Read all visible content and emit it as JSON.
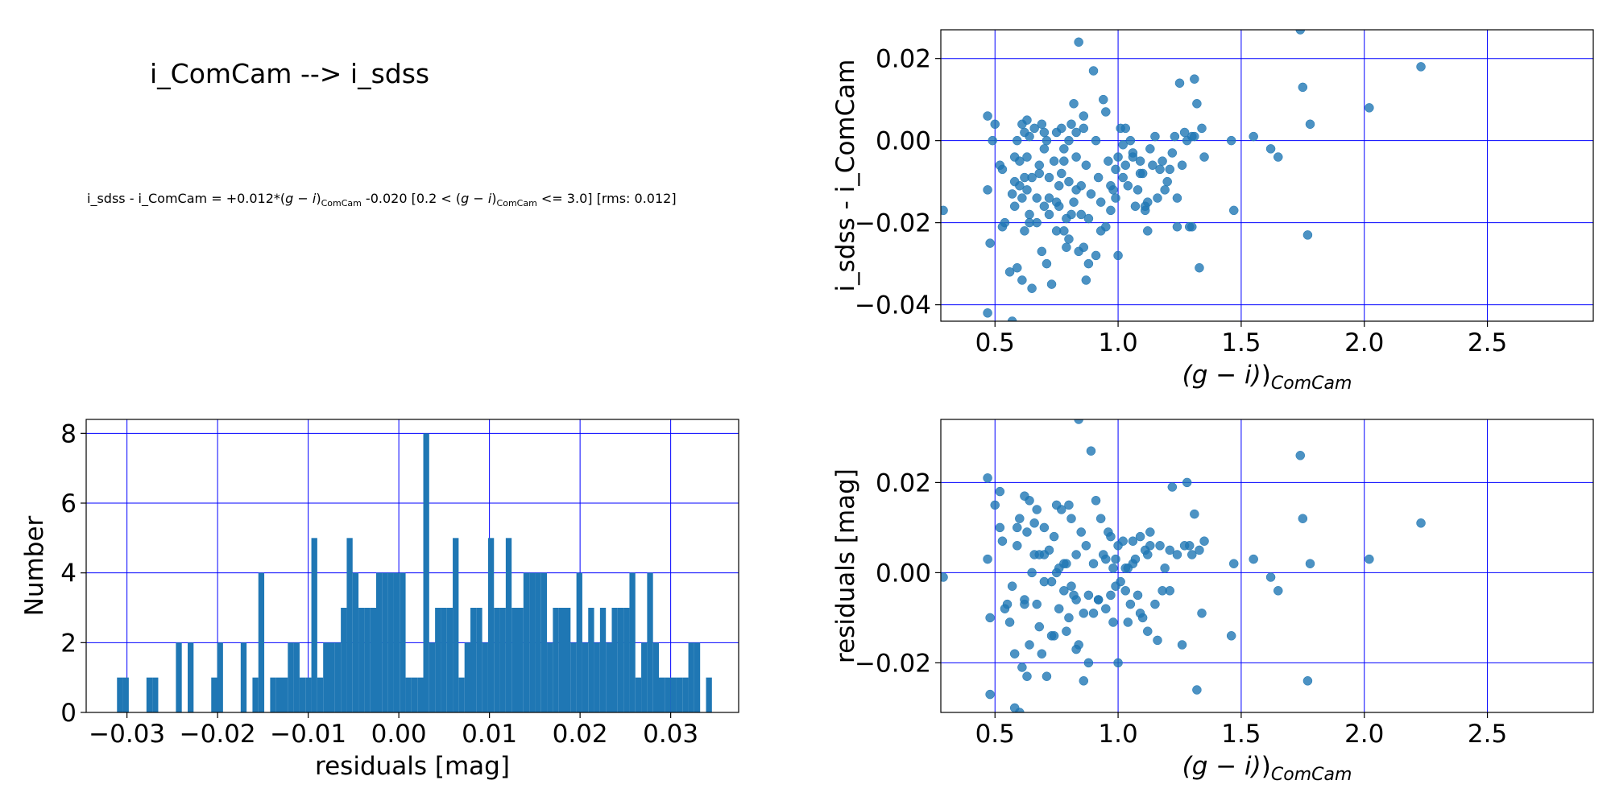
{
  "title": "i_ComCam --> i_sdss",
  "formula": {
    "lhs": "i_sdss - i_ComCam = +0.012*(",
    "var1_pre": "g",
    "var1_mid": " − ",
    "var1_post": "i",
    "var1_sub": "ComCam",
    "mid": " -0.020  [0.2 < (",
    "var2_sub": "ComCam",
    "tail": " <= 3.0]  [rms: 0.012]"
  },
  "chart_data": [
    {
      "type": "scatter",
      "panel": "top-right",
      "xlabel": "(g − i)",
      "xlabel_sub": "ComCam",
      "ylabel": "i_sdss - i_ComCam",
      "xlim": [
        0.28,
        2.93
      ],
      "ylim": [
        -0.044,
        0.027
      ],
      "xticks": [
        0.5,
        1.0,
        1.5,
        2.0,
        2.5
      ],
      "xtick_labels": [
        "0.5",
        "1.0",
        "1.5",
        "2.0",
        "2.5"
      ],
      "yticks": [
        -0.04,
        -0.02,
        0.0,
        0.02
      ],
      "ytick_labels": [
        "−0.04",
        "−0.02",
        "0.00",
        "0.02"
      ],
      "grid": true,
      "color": "#1f77b4",
      "grid_color": "#0000ff",
      "x": [
        0.29,
        0.47,
        0.47,
        0.48,
        0.47,
        0.49,
        0.5,
        0.53,
        0.53,
        0.54,
        0.57,
        0.57,
        0.58,
        0.58,
        0.59,
        0.59,
        0.6,
        0.6,
        0.61,
        0.61,
        0.61,
        0.62,
        0.62,
        0.63,
        0.63,
        0.63,
        0.64,
        0.64,
        0.65,
        0.65,
        0.66,
        0.67,
        0.67,
        0.68,
        0.69,
        0.69,
        0.7,
        0.7,
        0.71,
        0.71,
        0.72,
        0.72,
        0.73,
        0.74,
        0.75,
        0.75,
        0.76,
        0.76,
        0.77,
        0.77,
        0.78,
        0.78,
        0.79,
        0.8,
        0.8,
        0.8,
        0.81,
        0.81,
        0.82,
        0.82,
        0.83,
        0.83,
        0.84,
        0.84,
        0.85,
        0.85,
        0.86,
        0.86,
        0.87,
        0.87,
        0.88,
        0.89,
        0.9,
        0.91,
        0.92,
        0.93,
        0.93,
        0.94,
        0.95,
        0.96,
        0.97,
        0.98,
        0.99,
        1.0,
        1.0,
        1.01,
        1.02,
        1.03,
        1.04,
        1.05,
        1.06,
        1.07,
        1.08,
        1.09,
        1.1,
        1.11,
        1.12,
        1.13,
        1.14,
        1.15,
        1.17,
        1.19,
        1.2,
        1.22,
        1.23,
        1.24,
        1.25,
        1.26,
        1.28,
        1.29,
        1.3,
        1.31,
        1.32,
        1.33,
        1.34,
        1.35,
        1.46,
        1.47,
        1.55,
        1.62,
        1.65,
        1.74,
        1.75,
        1.77,
        1.78,
        2.02,
        2.23,
        0.56,
        0.58,
        0.64,
        0.72,
        0.79,
        0.86,
        0.91,
        0.99,
        1.06,
        1.11,
        1.18,
        1.27,
        1.31,
        0.68,
        0.75,
        0.83,
        0.95,
        1.02,
        1.09,
        1.16,
        1.24,
        0.52,
        0.62,
        0.7,
        0.78,
        0.88,
        0.97,
        1.03,
        1.12,
        1.21,
        1.3
      ],
      "y": [
        -0.017,
        0.006,
        -0.012,
        -0.025,
        -0.042,
        0.0,
        0.004,
        -0.007,
        -0.021,
        -0.02,
        -0.013,
        -0.044,
        -0.004,
        -0.016,
        0.0,
        -0.031,
        -0.011,
        -0.005,
        0.004,
        -0.034,
        -0.014,
        0.002,
        -0.022,
        0.005,
        -0.004,
        -0.012,
        -0.018,
        0.001,
        -0.036,
        -0.009,
        0.003,
        -0.014,
        -0.02,
        -0.006,
        0.004,
        -0.027,
        -0.002,
        -0.016,
        0.0,
        -0.03,
        -0.009,
        -0.018,
        -0.035,
        -0.005,
        0.002,
        -0.022,
        -0.011,
        -0.016,
        0.003,
        -0.008,
        -0.002,
        -0.022,
        -0.019,
        0.0,
        -0.01,
        -0.024,
        0.004,
        -0.018,
        0.009,
        -0.015,
        0.002,
        -0.004,
        -0.027,
        0.024,
        -0.011,
        -0.018,
        -0.026,
        0.003,
        -0.006,
        -0.034,
        -0.03,
        -0.013,
        0.017,
        0.0,
        -0.009,
        -0.015,
        -0.022,
        0.01,
        0.007,
        -0.005,
        -0.017,
        -0.012,
        -0.014,
        -0.004,
        -0.028,
        0.003,
        -0.009,
        -0.006,
        -0.011,
        0.0,
        -0.003,
        -0.016,
        -0.012,
        -0.005,
        -0.008,
        -0.017,
        -0.022,
        -0.002,
        -0.006,
        0.001,
        -0.007,
        -0.012,
        -0.01,
        -0.003,
        0.001,
        -0.014,
        0.014,
        -0.006,
        0.0,
        -0.021,
        0.001,
        0.015,
        0.009,
        -0.031,
        0.003,
        -0.004,
        0.0,
        -0.017,
        0.001,
        -0.002,
        -0.004,
        0.027,
        0.013,
        -0.023,
        0.004,
        0.008,
        0.018,
        -0.032,
        -0.01,
        -0.02,
        -0.014,
        -0.026,
        0.006,
        -0.028,
        -0.007,
        -0.004,
        -0.016,
        -0.005,
        0.002,
        0.001,
        -0.008,
        -0.015,
        -0.012,
        -0.021,
        -0.001,
        -0.008,
        -0.014,
        -0.021,
        -0.006,
        -0.009,
        0.002,
        -0.005,
        -0.019,
        -0.011,
        0.003,
        -0.015,
        -0.007,
        -0.021
      ]
    },
    {
      "type": "bar",
      "subtype": "histogram",
      "panel": "bottom-left",
      "xlabel": "residuals [mag]",
      "ylabel": "Number",
      "xlim": [
        -0.0345,
        0.0375
      ],
      "ylim": [
        0,
        8.4
      ],
      "xticks": [
        -0.03,
        -0.02,
        -0.01,
        0.0,
        0.01,
        0.02,
        0.03
      ],
      "xtick_labels": [
        "−0.03",
        "−0.02",
        "−0.01",
        "0.00",
        "0.01",
        "0.02",
        "0.03"
      ],
      "yticks": [
        0,
        2,
        4,
        6,
        8
      ],
      "ytick_labels": [
        "0",
        "2",
        "4",
        "6",
        "8"
      ],
      "grid": true,
      "color": "#1f77b4",
      "grid_color": "#0000ff",
      "bin_start": -0.0311,
      "bin_width": 0.00065,
      "values": [
        1,
        1,
        0,
        0,
        0,
        1,
        1,
        0,
        0,
        0,
        2,
        0,
        2,
        0,
        0,
        0,
        1,
        2,
        0,
        0,
        0,
        2,
        0,
        1,
        4,
        0,
        1,
        1,
        1,
        2,
        2,
        1,
        1,
        5,
        1,
        2,
        2,
        2,
        3,
        5,
        4,
        3,
        3,
        3,
        4,
        4,
        4,
        4,
        4,
        1,
        1,
        1,
        8,
        2,
        3,
        3,
        3,
        5,
        1,
        2,
        3,
        3,
        2,
        5,
        3,
        3,
        5,
        3,
        3,
        4,
        4,
        4,
        4,
        2,
        3,
        3,
        3,
        2,
        4,
        2,
        3,
        2,
        3,
        2,
        3,
        3,
        3,
        4,
        1,
        2,
        4,
        2,
        1,
        1,
        1,
        1,
        1,
        2,
        2,
        0,
        1,
        0,
        0,
        0,
        0,
        0,
        0,
        0,
        0,
        0,
        0,
        0,
        0,
        0,
        0,
        0,
        0,
        0,
        0,
        0
      ]
    },
    {
      "type": "scatter",
      "panel": "bottom-right",
      "xlabel": "(g − i)",
      "xlabel_sub": "ComCam",
      "ylabel": "residuals [mag]",
      "xlim": [
        0.28,
        2.93
      ],
      "ylim": [
        -0.031,
        0.034
      ],
      "xticks": [
        0.5,
        1.0,
        1.5,
        2.0,
        2.5
      ],
      "xtick_labels": [
        "0.5",
        "1.0",
        "1.5",
        "2.0",
        "2.5"
      ],
      "yticks": [
        -0.02,
        0.0,
        0.02
      ],
      "ytick_labels": [
        "−0.02",
        "0.00",
        "0.02"
      ],
      "grid": true,
      "color": "#1f77b4",
      "grid_color": "#0000ff",
      "x": [
        0.29,
        0.47,
        0.47,
        0.48,
        0.48,
        0.5,
        0.52,
        0.53,
        0.54,
        0.57,
        0.58,
        0.58,
        0.59,
        0.6,
        0.6,
        0.61,
        0.62,
        0.62,
        0.63,
        0.63,
        0.64,
        0.65,
        0.66,
        0.67,
        0.67,
        0.68,
        0.69,
        0.7,
        0.7,
        0.71,
        0.72,
        0.73,
        0.74,
        0.75,
        0.76,
        0.76,
        0.77,
        0.78,
        0.79,
        0.8,
        0.8,
        0.81,
        0.82,
        0.83,
        0.83,
        0.84,
        0.84,
        0.85,
        0.86,
        0.87,
        0.88,
        0.89,
        0.9,
        0.91,
        0.92,
        0.93,
        0.94,
        0.95,
        0.96,
        0.97,
        0.98,
        0.99,
        1.0,
        1.0,
        1.01,
        1.02,
        1.03,
        1.04,
        1.05,
        1.06,
        1.07,
        1.08,
        1.09,
        1.1,
        1.11,
        1.12,
        1.13,
        1.15,
        1.17,
        1.19,
        1.21,
        1.22,
        1.24,
        1.26,
        1.28,
        1.29,
        1.3,
        1.31,
        1.32,
        1.33,
        1.34,
        1.35,
        1.46,
        1.47,
        1.55,
        1.62,
        1.65,
        1.74,
        1.75,
        1.77,
        1.78,
        2.02,
        2.23,
        0.56,
        0.59,
        0.64,
        0.73,
        0.79,
        0.86,
        0.92,
        0.99,
        1.06,
        1.12,
        1.18,
        1.27,
        0.68,
        0.75,
        0.83,
        0.95,
        1.03,
        1.09,
        1.16,
        0.52,
        0.62,
        0.7,
        0.78,
        0.88,
        0.97,
        1.04,
        1.13,
        1.21,
        0.55,
        0.66,
        0.74,
        0.81,
        0.9,
        0.98
      ],
      "y": [
        -0.001,
        0.021,
        0.003,
        -0.01,
        -0.027,
        0.015,
        0.018,
        0.007,
        -0.008,
        -0.003,
        -0.018,
        -0.03,
        0.006,
        0.012,
        -0.031,
        -0.021,
        0.017,
        -0.006,
        0.009,
        -0.023,
        0.016,
        0.0,
        0.011,
        -0.007,
        0.014,
        0.004,
        -0.018,
        0.01,
        -0.002,
        -0.023,
        0.005,
        -0.014,
        0.008,
        0.015,
        0.001,
        -0.008,
        0.014,
        -0.004,
        0.002,
        0.015,
        -0.01,
        0.012,
        -0.005,
        -0.017,
        0.004,
        0.034,
        -0.016,
        0.009,
        -0.024,
        0.006,
        -0.02,
        0.027,
        0.002,
        0.016,
        -0.006,
        0.012,
        0.004,
        -0.008,
        0.009,
        -0.005,
        -0.011,
        0.003,
        -0.02,
        0.006,
        -0.002,
        0.007,
        -0.004,
        0.001,
        -0.007,
        0.002,
        0.003,
        -0.005,
        0.008,
        -0.01,
        0.005,
        -0.013,
        0.009,
        -0.007,
        0.006,
        0.001,
        -0.004,
        0.019,
        0.004,
        -0.016,
        0.02,
        0.006,
        0.004,
        0.013,
        -0.026,
        0.005,
        -0.009,
        0.007,
        -0.014,
        0.002,
        0.003,
        -0.001,
        -0.004,
        0.026,
        0.012,
        -0.024,
        0.002,
        0.003,
        0.011,
        -0.011,
        0.01,
        -0.016,
        -0.002,
        -0.013,
        -0.009,
        -0.006,
        -0.003,
        0.007,
        0.004,
        -0.004,
        0.006,
        -0.012,
        0.0,
        -0.006,
        0.003,
        0.001,
        -0.009,
        -0.015,
        0.01,
        -0.007,
        0.004,
        0.002,
        -0.005,
        0.008,
        -0.011,
        0.006,
        0.005,
        -0.007,
        0.004,
        -0.014,
        -0.003,
        -0.009,
        0.001
      ]
    }
  ]
}
